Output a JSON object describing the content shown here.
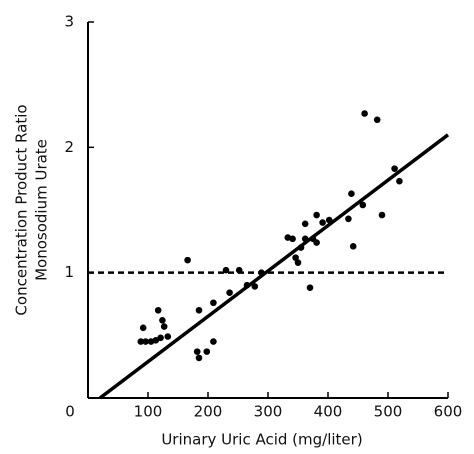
{
  "chart_data": {
    "type": "scatter",
    "xlabel": "Urinary Uric Acid (mg/liter)",
    "ylabel": [
      "Concentration Product Ratio",
      "Monosodium Urate"
    ],
    "xlim": [
      0,
      600
    ],
    "ylim": [
      0,
      3
    ],
    "xticks": [
      0,
      100,
      200,
      300,
      400,
      500,
      600
    ],
    "yticks": [
      1,
      2,
      3
    ],
    "color": "#000000",
    "x": [
      92,
      88,
      96,
      105,
      113,
      121,
      117,
      124,
      127,
      133,
      166,
      185,
      182,
      185,
      198,
      209,
      209,
      230,
      236,
      252,
      265,
      278,
      289,
      333,
      341,
      346,
      350,
      355,
      362,
      362,
      370,
      375,
      381,
      381,
      391,
      402,
      434,
      439,
      442,
      458,
      461,
      482,
      490,
      511,
      519
    ],
    "y": [
      0.56,
      0.45,
      0.45,
      0.45,
      0.46,
      0.48,
      0.7,
      0.62,
      0.57,
      0.49,
      1.1,
      0.7,
      0.37,
      0.32,
      0.37,
      0.45,
      0.76,
      1.02,
      0.84,
      1.02,
      0.9,
      0.89,
      1.0,
      1.28,
      1.27,
      1.12,
      1.08,
      1.2,
      1.27,
      1.39,
      0.88,
      1.27,
      1.46,
      1.24,
      1.4,
      1.42,
      1.43,
      1.63,
      1.21,
      1.54,
      2.27,
      2.22,
      1.46,
      1.83,
      1.73
    ],
    "lines": [
      {
        "x": [
          20,
          600
        ],
        "y": [
          0,
          2.1
        ],
        "dashed": false
      },
      {
        "x": [
          0,
          600
        ],
        "y": [
          1,
          1
        ],
        "dashed": true
      }
    ]
  }
}
